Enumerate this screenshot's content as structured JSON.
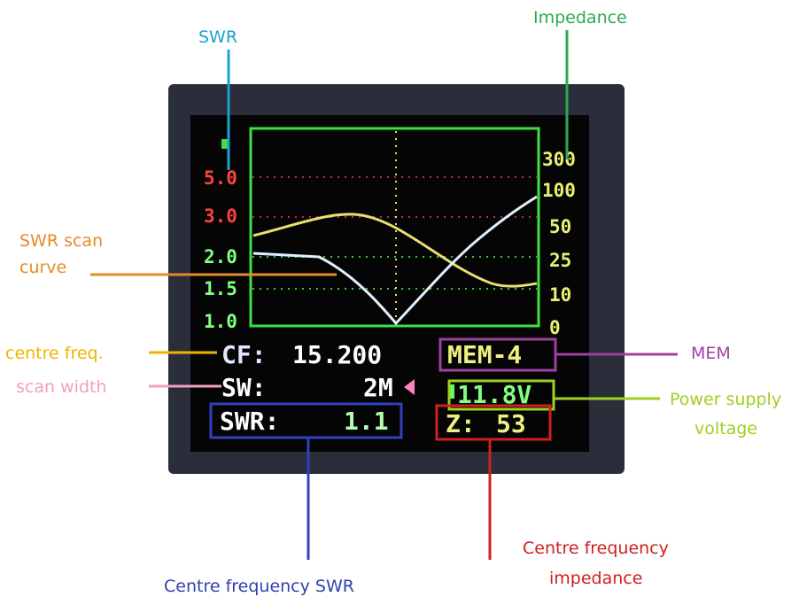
{
  "annotations": {
    "swr": "SWR",
    "impedance": "Impedance",
    "swr_scan_curve": [
      "SWR scan",
      "curve"
    ],
    "centre_freq": "centre freq.",
    "scan_width": "scan width",
    "mem": "MEM",
    "power_supply_voltage": [
      "Power supply",
      "voltage"
    ],
    "centre_frequency_swr": "Centre frequency SWR",
    "centre_frequency_impedance": [
      "Centre frequency",
      "impedance"
    ]
  },
  "screen": {
    "swr_scale": [
      "5.0",
      "3.0",
      "2.0",
      "1.5",
      "1.0"
    ],
    "impedance_scale": [
      "300",
      "100",
      "50",
      "25",
      "10",
      "0"
    ],
    "cf_label": "CF:",
    "cf_value": "15.200",
    "sw_label": "SW:",
    "sw_value": "2M",
    "swr_label": "SWR:",
    "swr_value": "1.1",
    "mem": "MEM-4",
    "voltage": "11.8V",
    "z_label": "Z:",
    "z_value": "53"
  }
}
